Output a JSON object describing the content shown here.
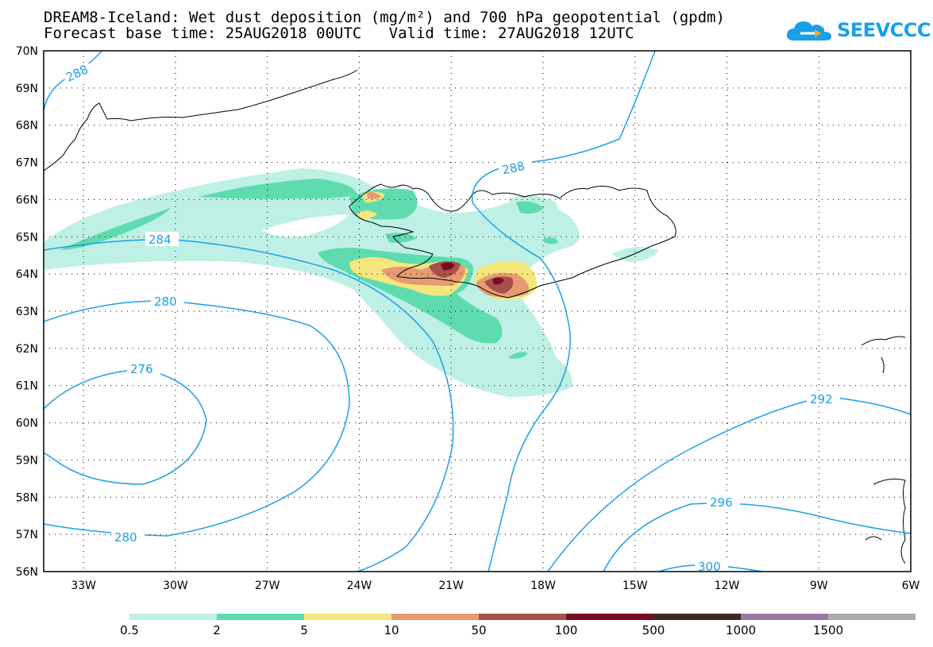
{
  "title": {
    "line1": "DREAM8-Iceland: Wet dust deposition (mg/m²) and 700 hPa geopotential (gpdm)",
    "line2": "Forecast base time: 25AUG2018 00UTC   Valid time: 27AUG2018 12UTC"
  },
  "logo": {
    "text": "SEEVCCC",
    "icon": "cloud-icon"
  },
  "axes": {
    "lat_labels": [
      "70N",
      "69N",
      "68N",
      "67N",
      "66N",
      "65N",
      "64N",
      "63N",
      "62N",
      "61N",
      "60N",
      "59N",
      "58N",
      "57N",
      "56N"
    ],
    "lon_labels": [
      "33W",
      "30W",
      "27W",
      "24W",
      "21W",
      "18W",
      "15W",
      "12W",
      "9W",
      "6W"
    ],
    "lat_range": [
      56,
      70
    ],
    "lon_range": [
      -34.3,
      -6
    ],
    "grid": "dotted"
  },
  "contour_labels": [
    "288",
    "288",
    "284",
    "280",
    "276",
    "280",
    "292",
    "296",
    "300"
  ],
  "colors": {
    "contour": "#1aa0e6",
    "coast": "#000000",
    "bins": [
      "#bff0e6",
      "#5fdcaf",
      "#f5e67d",
      "#e69b73",
      "#a5504b",
      "#780a23",
      "#3c281e",
      "#9b78a5",
      "#aaaaaa"
    ]
  },
  "legend": {
    "labels": [
      "0.5",
      "2",
      "5",
      "10",
      "50",
      "100",
      "500",
      "1000",
      "1500"
    ]
  }
}
